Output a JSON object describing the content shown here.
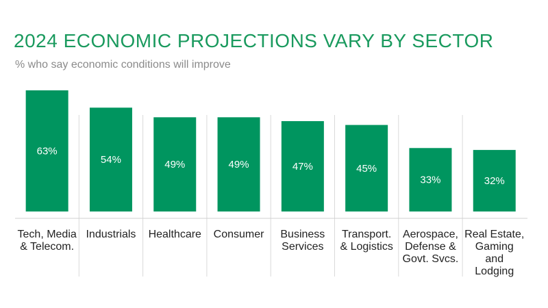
{
  "chart_data": {
    "type": "bar",
    "title": "2024 ECONOMIC PROJECTIONS VARY BY SECTOR",
    "subtitle": "% who say economic conditions will improve",
    "categories": [
      [
        "Tech, Media",
        "& Telecom."
      ],
      [
        "Industrials"
      ],
      [
        "Healthcare"
      ],
      [
        "Consumer"
      ],
      [
        "Business",
        "Services"
      ],
      [
        "Transport.",
        "& Logistics"
      ],
      [
        "Aerospace,",
        "Defense &",
        "Govt. Svcs."
      ],
      [
        "Real Estate,",
        "Gaming",
        "and",
        "Lodging"
      ]
    ],
    "values": [
      63,
      54,
      49,
      49,
      47,
      45,
      33,
      32
    ],
    "value_labels": [
      "63%",
      "54%",
      "49%",
      "49%",
      "47%",
      "45%",
      "33%",
      "32%"
    ],
    "ylim": [
      0,
      63
    ],
    "grid": false,
    "legend": "none",
    "colors": {
      "bar": "#00955f",
      "title": "#1a9a5e"
    }
  }
}
